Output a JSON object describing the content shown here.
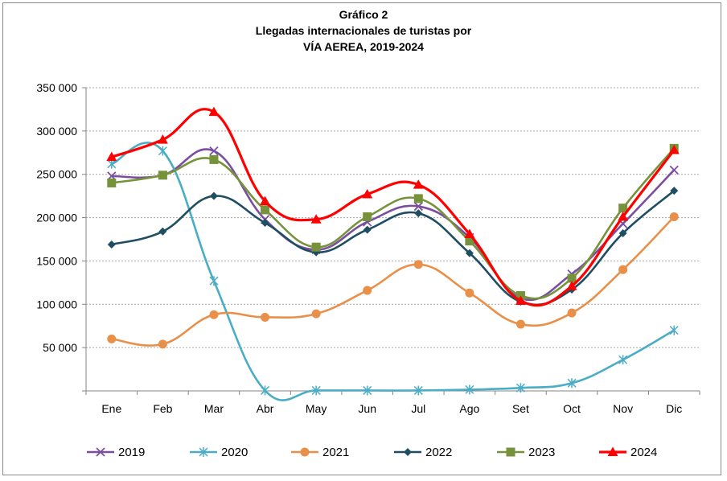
{
  "chart_data": {
    "type": "line",
    "title_lines": [
      "Gráfico 2",
      "Llegadas internacionales de turistas por",
      "VÍA AEREA, 2019-2024"
    ],
    "categories": [
      "Ene",
      "Feb",
      "Mar",
      "Abr",
      "May",
      "Jun",
      "Jul",
      "Ago",
      "Set",
      "Oct",
      "Nov",
      "Dic"
    ],
    "ylim": [
      0,
      350000
    ],
    "yticks": [
      0,
      50000,
      100000,
      150000,
      200000,
      250000,
      300000,
      350000
    ],
    "ytick_labels": [
      "",
      "50 000",
      "100 000",
      "150 000",
      "200 000",
      "250 000",
      "300 000",
      "350 000"
    ],
    "grid": true,
    "legend_position": "bottom",
    "series": [
      {
        "name": "2019",
        "color": "#7B4FA0",
        "marker": "x",
        "values": [
          248000,
          249000,
          277000,
          198000,
          163000,
          195000,
          213000,
          177000,
          107000,
          135000,
          193000,
          255000
        ]
      },
      {
        "name": "2020",
        "color": "#4BACC6",
        "marker": "asterisk",
        "values": [
          262000,
          277000,
          127000,
          500,
          500,
          500,
          500,
          1500,
          3500,
          9000,
          36000,
          70000
        ]
      },
      {
        "name": "2021",
        "color": "#E8904A",
        "marker": "circle",
        "values": [
          60000,
          54000,
          88000,
          85000,
          89000,
          116000,
          146000,
          113000,
          77000,
          90000,
          140000,
          201000
        ]
      },
      {
        "name": "2022",
        "color": "#1F4E63",
        "marker": "diamond",
        "values": [
          169000,
          184000,
          225000,
          194000,
          160000,
          186000,
          205000,
          159000,
          103000,
          117000,
          182000,
          231000
        ]
      },
      {
        "name": "2023",
        "color": "#76933C",
        "marker": "square",
        "values": [
          240000,
          249000,
          267000,
          209000,
          166000,
          201000,
          222000,
          173000,
          110000,
          130000,
          211000,
          280000
        ]
      },
      {
        "name": "2024",
        "color": "#FF0000",
        "marker": "triangle",
        "values": [
          270000,
          290000,
          322000,
          219000,
          198000,
          227000,
          238000,
          181000,
          104000,
          121000,
          201000,
          278000
        ]
      }
    ]
  }
}
